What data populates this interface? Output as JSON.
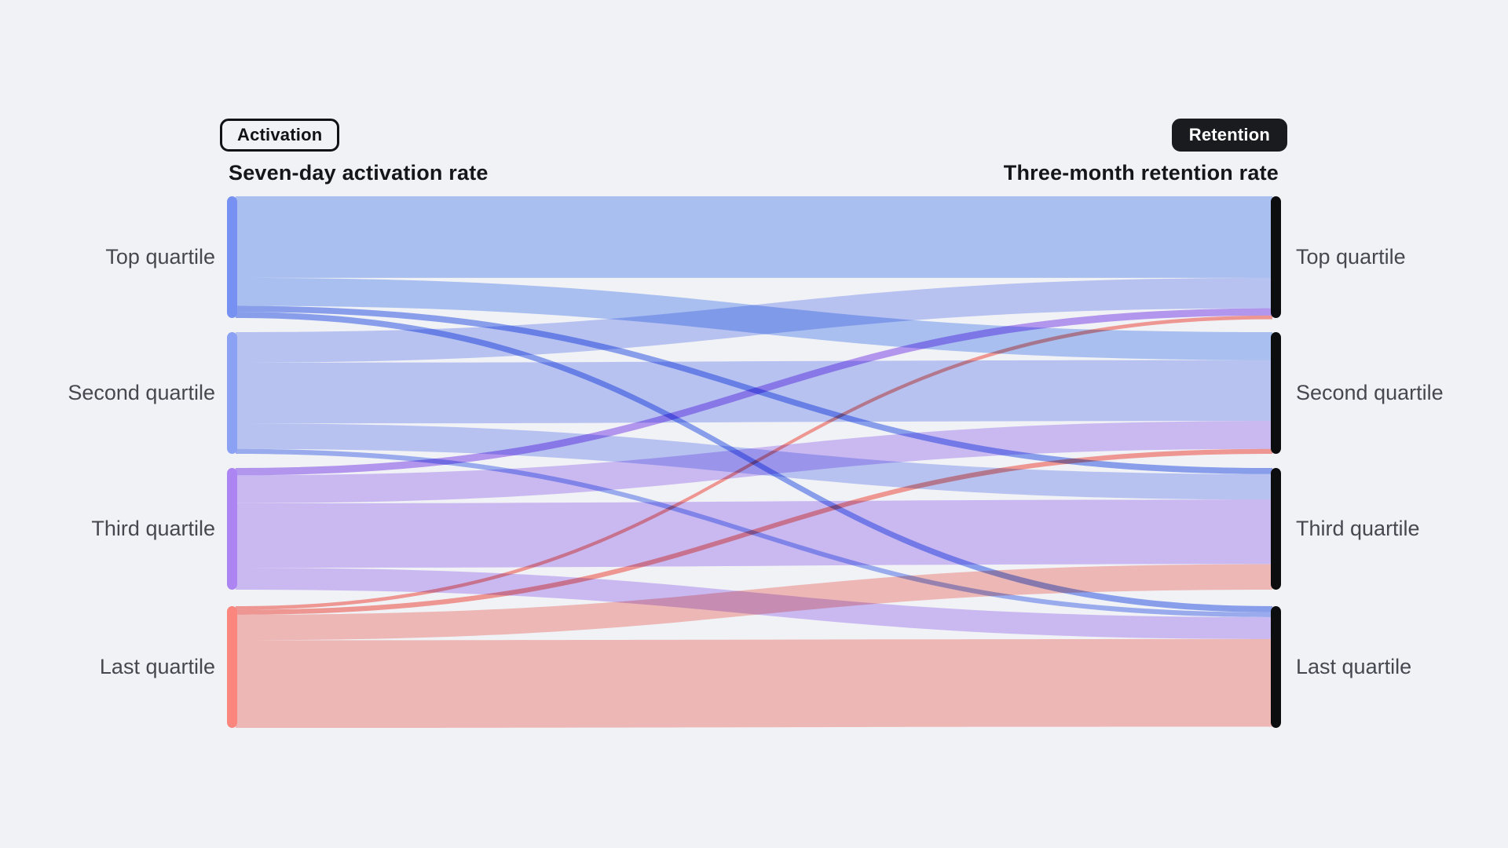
{
  "header": {
    "left_badge": "Activation",
    "right_badge": "Retention"
  },
  "chart_data": {
    "type": "sankey",
    "left_axis_label": "Seven-day activation rate",
    "right_axis_label": "Three-month retention rate",
    "left_categories": [
      "Top quartile",
      "Second quartile",
      "Third quartile",
      "Last quartile"
    ],
    "right_categories": [
      "Top quartile",
      "Second quartile",
      "Third quartile",
      "Last quartile"
    ],
    "flows_percent": [
      [
        67,
        23,
        5,
        5
      ],
      [
        25,
        50,
        21,
        4
      ],
      [
        6,
        23,
        53,
        18
      ],
      [
        3,
        4,
        21,
        72
      ]
    ],
    "node_colors": [
      "#7691f1",
      "#8ba1f3",
      "#ad85f3",
      "#fa867d"
    ],
    "flow_colors": [
      "#b3caf9",
      "#c2cdf9",
      "#d6c3fa",
      "#fbc1bd"
    ],
    "right_bar_color": "#0c0d0f",
    "background": "#f1f2f6",
    "legend_position": "none",
    "grid": false
  }
}
